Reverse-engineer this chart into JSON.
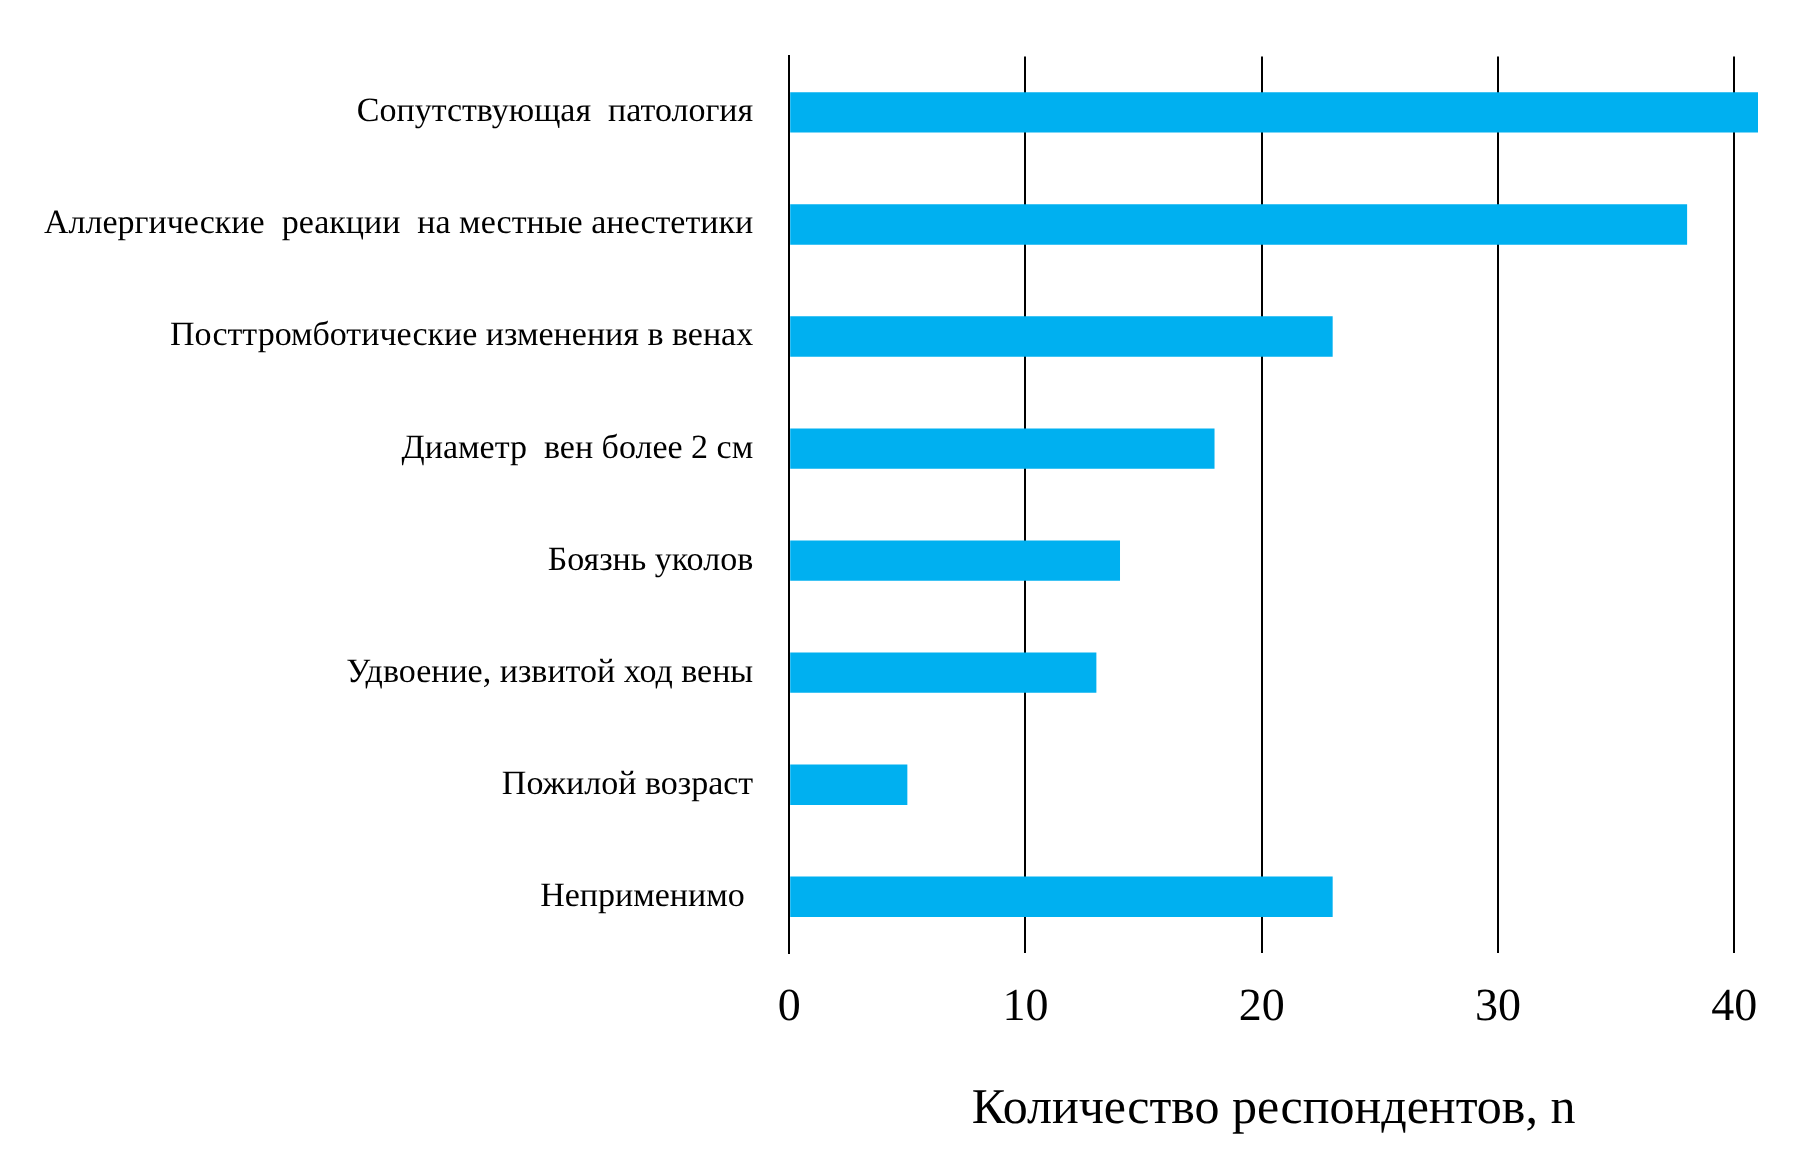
{
  "chart_data": {
    "type": "bar",
    "orientation": "horizontal",
    "categories": [
      "Сопутствующая  патология",
      "Аллергические  реакции  на местные анестетики",
      "Посттромботические изменения в венах",
      "Диаметр  вен более 2 см",
      "Боязнь уколов",
      "Удвоение, извитой ход вены",
      "Пожилой возраст",
      "Неприменимо "
    ],
    "values": [
      41,
      38,
      23,
      18,
      14,
      13,
      5,
      23
    ],
    "color": "#00b0f0",
    "xlabel": "Количество респондентов, n",
    "xlim": [
      0,
      41
    ],
    "xticks": [
      0,
      10,
      20,
      30,
      40
    ],
    "grid": "x"
  }
}
